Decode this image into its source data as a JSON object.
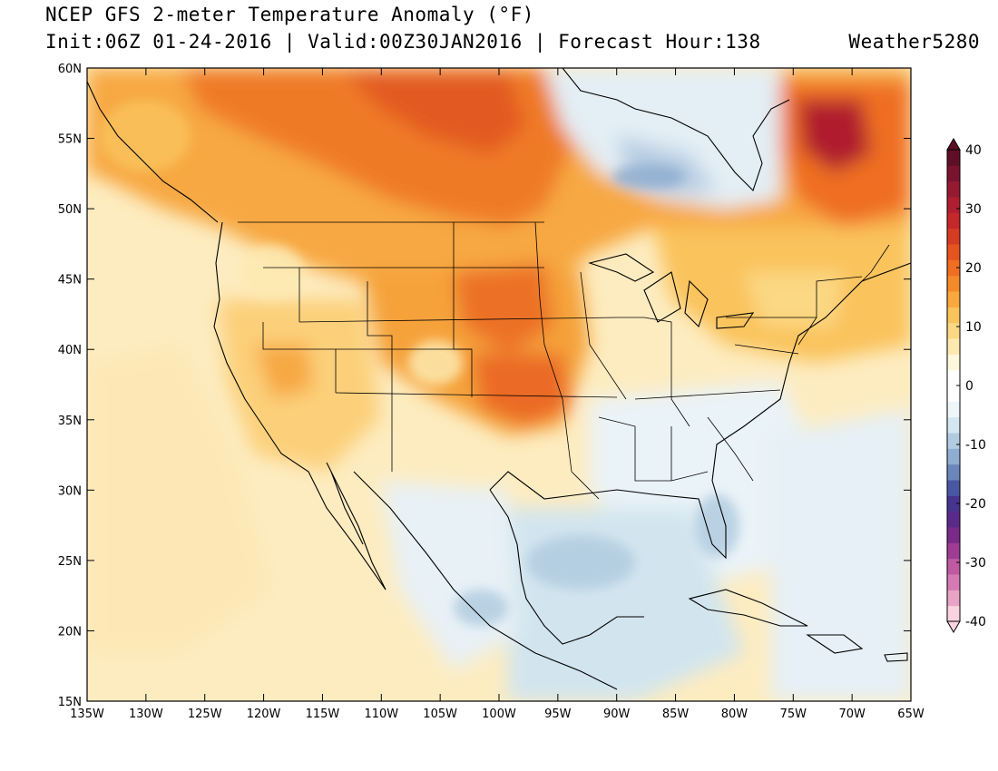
{
  "header": {
    "title": "NCEP GFS 2-meter Temperature Anomaly (°F)",
    "subtitle": "Init:06Z 01-24-2016 | Valid:00Z30JAN2016 | Forecast Hour:138",
    "credit": "Weather5280"
  },
  "map": {
    "lon_range": [
      -135,
      -65
    ],
    "lat_range": [
      15,
      60
    ],
    "lat_ticks": [
      "15N",
      "20N",
      "25N",
      "30N",
      "35N",
      "40N",
      "45N",
      "50N",
      "55N",
      "60N"
    ],
    "lon_ticks": [
      "135W",
      "130W",
      "125W",
      "120W",
      "115W",
      "110W",
      "105W",
      "100W",
      "95W",
      "90W",
      "85W",
      "80W",
      "75W",
      "70W",
      "65W"
    ]
  },
  "colorbar": {
    "range": [
      -40,
      40
    ],
    "labels": [
      "40",
      "30",
      "20",
      "10",
      "0",
      "-10",
      "-20",
      "-30",
      "-40"
    ],
    "colors": [
      "#fbd3e0",
      "#e8a3c5",
      "#d47ab4",
      "#c05aa3",
      "#9e3d93",
      "#7a2a88",
      "#5a2a8a",
      "#47348f",
      "#4a57a3",
      "#6c85bb",
      "#8fadd0",
      "#b1cce0",
      "#d4e6f0",
      "#eef6fa",
      "#ffffff",
      "#ffffff",
      "#fff7dc",
      "#fde9b0",
      "#fbd884",
      "#fac35c",
      "#f8a83d",
      "#f58a2b",
      "#ef6e22",
      "#e5541f",
      "#d63c24",
      "#c4282a",
      "#b01f2f",
      "#951a31",
      "#7a1330",
      "#5e0f27"
    ]
  }
}
